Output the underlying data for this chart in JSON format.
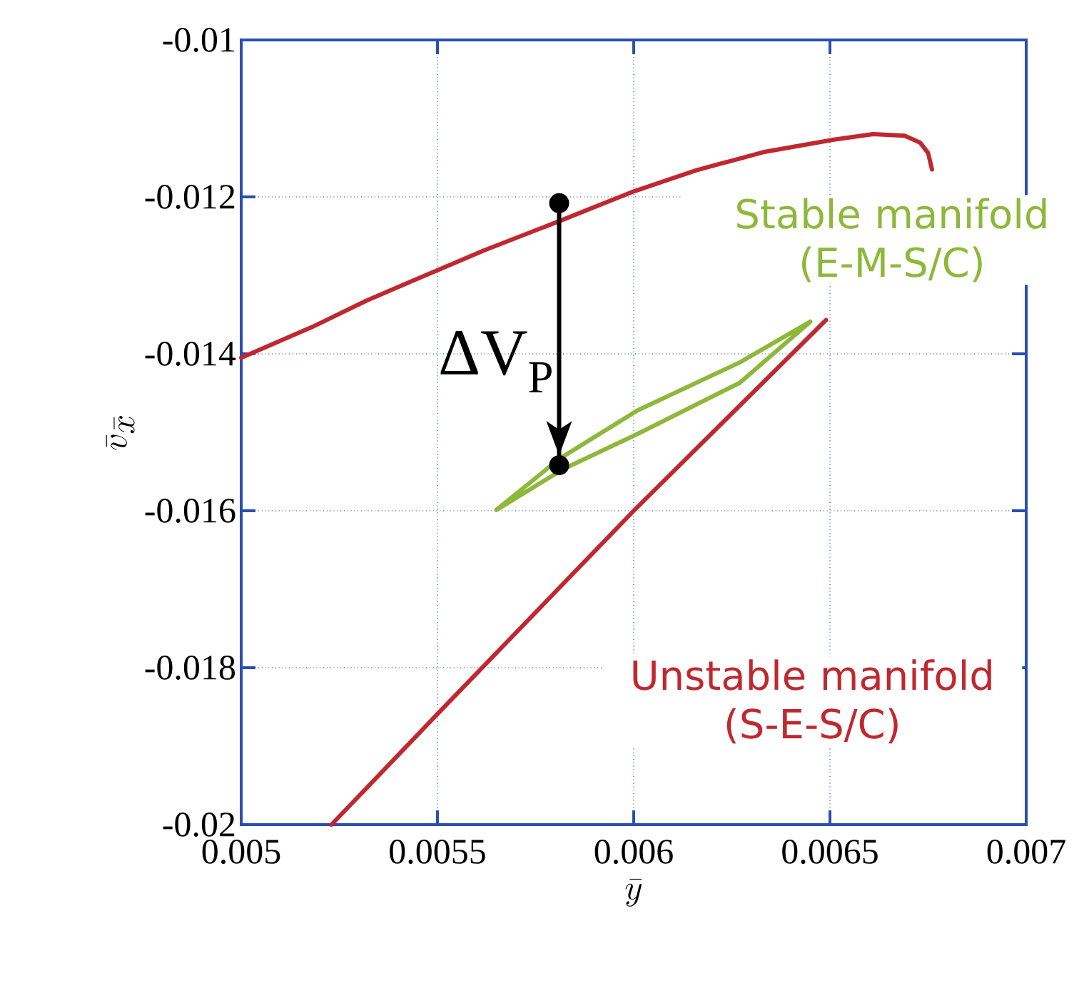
{
  "chart_data": {
    "type": "line",
    "xlabel": "\\bar{y}",
    "ylabel": "\\bar{v}_{\\bar{x}}",
    "xlim": [
      0.005,
      0.007
    ],
    "ylim": [
      -0.02,
      -0.01
    ],
    "xticks": [
      0.005,
      0.0055,
      0.006,
      0.0065,
      0.007
    ],
    "yticks": [
      -0.02,
      -0.018,
      -0.016,
      -0.014,
      -0.012,
      -0.01
    ],
    "grid": true,
    "series": [
      {
        "name": "Unstable manifold (S-E-S/C)",
        "color": "#c0282f",
        "x": [
          0.005,
          0.00518,
          0.00532,
          0.00545,
          0.00562,
          0.00582,
          0.006,
          0.00616,
          0.00633,
          0.00651,
          0.00661,
          0.00669,
          0.00673,
          0.00675,
          0.00676,
          null,
          0.00523,
          0.0055,
          0.006,
          0.00649
        ],
        "values": [
          -0.01405,
          -0.01366,
          -0.01332,
          -0.01304,
          -0.01268,
          -0.01229,
          -0.01193,
          -0.01166,
          -0.01143,
          -0.01127,
          -0.0112,
          -0.01122,
          -0.01131,
          -0.01144,
          -0.01165,
          null,
          -0.02,
          -0.01859,
          -0.016,
          -0.01357
        ]
      },
      {
        "name": "Stable manifold (E-M-S/C)",
        "color": "#8db83a",
        "x": [
          0.00565,
          0.00581,
          0.00601,
          0.00627,
          0.00645,
          null,
          0.00565,
          0.00582,
          0.00601,
          0.00627,
          0.00645
        ],
        "values": [
          -0.01599,
          -0.01534,
          -0.01472,
          -0.01411,
          -0.01359,
          null,
          -0.01599,
          -0.01547,
          -0.01502,
          -0.01437,
          -0.01359
        ]
      },
      {
        "color": "#000000",
        "marker": "circle",
        "x": [
          0.00581,
          0.00581
        ],
        "values": [
          -0.01208,
          -0.01542
        ]
      }
    ],
    "annotations": [
      {
        "text": "ΔV$_{P}$",
        "x": 0.00581,
        "y": -0.0141
      }
    ]
  }
}
